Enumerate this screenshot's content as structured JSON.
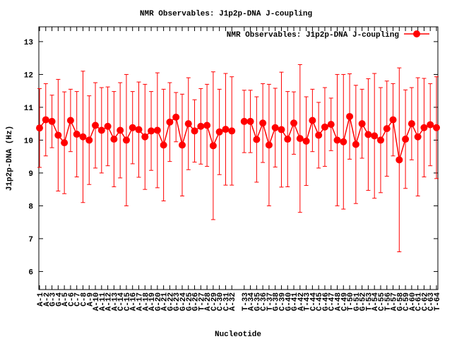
{
  "chart_data": {
    "type": "errorbar-line",
    "title": "NMR Observables: J1p2p-DNA J-coupling",
    "xlabel": "Nucleotide",
    "ylabel": "J1p2p-DNA (Hz)",
    "ylim": [
      5.45,
      13.45
    ],
    "yticks": [
      6,
      7,
      8,
      9,
      10,
      11,
      12,
      13
    ],
    "grid": false,
    "legend": "top-right",
    "categories": [
      "A-1",
      "A-2",
      "G-3",
      "G-4",
      "A-5",
      "C-6",
      "C-7",
      "C-8",
      "A-9",
      "A-10",
      "A-11",
      "A-12",
      "A-13",
      "C-14",
      "C-15",
      "A-16",
      "A-17",
      "A-18",
      "A-19",
      "G-20",
      "A-21",
      "G-22",
      "G-23",
      "G-24",
      "G-25",
      "G-26",
      "T-27",
      "A-28",
      "C-29",
      "C-30",
      "C-31",
      "A-32",
      null,
      "T-33",
      "A-34",
      "G-35",
      "C-36",
      "T-37",
      "G-38",
      "C-39",
      "G-40",
      "G-41",
      "A-42",
      "T-43",
      "C-44",
      "C-45",
      "G-46",
      "C-47",
      "A-48",
      "C-49",
      "T-50",
      "G-51",
      "G-52",
      "T-53",
      "A-54",
      "C-55",
      "T-56",
      "A-57",
      "G-58",
      "C-59",
      "A-60",
      "C-61",
      "C-62",
      "C-63",
      "T-64"
    ],
    "series": [
      {
        "name": "NMR Observables: J1p2p-DNA J-coupling",
        "color": "#ff0000",
        "values": [
          10.37,
          10.62,
          10.57,
          10.15,
          9.92,
          10.6,
          10.18,
          10.1,
          10.0,
          10.45,
          10.3,
          10.42,
          10.03,
          10.3,
          10.0,
          10.38,
          10.32,
          10.1,
          10.28,
          10.3,
          9.85,
          10.55,
          10.7,
          9.85,
          10.5,
          10.28,
          10.42,
          10.45,
          9.83,
          10.25,
          10.33,
          10.28,
          null,
          10.57,
          10.57,
          10.02,
          10.52,
          9.85,
          10.38,
          10.32,
          10.03,
          10.52,
          10.05,
          9.97,
          10.6,
          10.15,
          10.4,
          10.48,
          10.0,
          9.95,
          10.72,
          9.87,
          10.5,
          10.17,
          10.13,
          10.0,
          10.35,
          10.62,
          9.4,
          10.03,
          10.5,
          10.1,
          10.38,
          10.47,
          10.38
        ],
        "errors": [
          1.2,
          1.1,
          0.8,
          1.7,
          1.55,
          0.95,
          1.3,
          2.0,
          1.35,
          1.3,
          1.3,
          1.2,
          1.45,
          1.45,
          2.0,
          1.1,
          1.45,
          1.6,
          1.2,
          1.75,
          1.7,
          1.2,
          0.75,
          1.55,
          1.4,
          0.95,
          1.15,
          1.25,
          2.25,
          1.3,
          1.7,
          1.65,
          null,
          0.95,
          0.95,
          1.3,
          1.2,
          1.85,
          1.2,
          1.75,
          1.45,
          0.95,
          2.25,
          1.35,
          0.95,
          1.0,
          1.2,
          0.8,
          2.0,
          2.05,
          1.3,
          1.8,
          1.05,
          1.7,
          1.9,
          1.6,
          1.45,
          1.1,
          2.8,
          1.5,
          1.1,
          1.8,
          1.5,
          1.25,
          1.55
        ]
      }
    ]
  }
}
